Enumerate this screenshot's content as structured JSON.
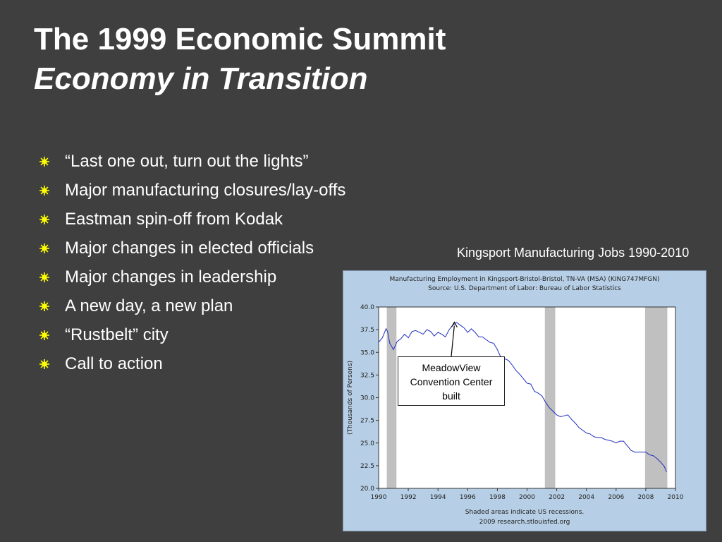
{
  "slide": {
    "title_line1": "The 1999 Economic Summit",
    "title_line2": "Economy in Transition",
    "bullets": [
      "“Last one out, turn out the lights”",
      "Major manufacturing closures/lay-offs",
      "Eastman spin-off from Kodak",
      "Major changes in elected officials",
      "Major changes in leadership",
      "A new day, a new plan",
      "“Rustbelt” city",
      "Call to action"
    ],
    "chart_caption": "Kingsport Manufacturing Jobs 1990-2010",
    "colors": {
      "background": "#3f3f3f",
      "bullet": "#ffff00",
      "chart_bg": "#b7cfe6",
      "plot_bg": "#ffffff",
      "line": "#1f2fbf",
      "recession": "#c0c0c0"
    }
  },
  "chart_data": {
    "type": "line",
    "title": "Manufacturing Employment in Kingsport-Bristol-Bristol, TN-VA (MSA) (KING747MFGN)",
    "subtitle": "Source: U.S. Department of Labor: Bureau of Labor Statistics",
    "ylabel": "(Thousands of Persons)",
    "xlabel": "",
    "xlim": [
      1990,
      2010
    ],
    "ylim": [
      20.0,
      40.0
    ],
    "x_ticks": [
      "1990",
      "1992",
      "1994",
      "1996",
      "1998",
      "2000",
      "2002",
      "2004",
      "2006",
      "2008",
      "2010"
    ],
    "y_ticks": [
      "20.0",
      "22.5",
      "25.0",
      "27.5",
      "30.0",
      "32.5",
      "35.0",
      "37.5",
      "40.0"
    ],
    "grid": false,
    "recessions": [
      [
        1990.55,
        1991.2
      ],
      [
        2001.2,
        2001.9
      ],
      [
        2007.95,
        2009.45
      ]
    ],
    "annotation": [
      "MeadowView",
      "Convention Center",
      "built"
    ],
    "annotation_x": 1995.1,
    "annotation_y": 38.4,
    "footer1": "Shaded areas indicate US recessions.",
    "footer2": "2009 research.stlouisfed.org",
    "series": [
      {
        "x": [
          1990.0,
          1990.25,
          1990.5,
          1990.6,
          1990.75,
          1991.0,
          1991.25,
          1991.5,
          1991.75,
          1992.0,
          1992.25,
          1992.5,
          1992.75,
          1993.0,
          1993.25,
          1993.5,
          1993.75,
          1994.0,
          1994.25,
          1994.5,
          1994.75,
          1995.0,
          1995.25,
          1995.5,
          1995.75,
          1996.0,
          1996.25,
          1996.5,
          1996.75,
          1997.0,
          1997.25,
          1997.5,
          1997.75,
          1998.0,
          1998.25,
          1998.5,
          1998.75,
          1999.0,
          1999.25,
          1999.5,
          1999.75,
          2000.0,
          2000.25,
          2000.5,
          2000.75,
          2001.0,
          2001.25,
          2001.5,
          2001.75,
          2002.0,
          2002.25,
          2002.5,
          2002.75,
          2003.0,
          2003.25,
          2003.5,
          2003.75,
          2004.0,
          2004.25,
          2004.5,
          2004.75,
          2005.0,
          2005.25,
          2005.5,
          2005.75,
          2006.0,
          2006.25,
          2006.5,
          2006.75,
          2007.0,
          2007.25,
          2007.5,
          2007.75,
          2008.0,
          2008.25,
          2008.5,
          2008.75,
          2009.0,
          2009.25,
          2009.4
        ],
        "values": [
          36.1,
          36.6,
          37.6,
          37.3,
          36.0,
          35.3,
          36.2,
          36.5,
          37.0,
          36.6,
          37.3,
          37.4,
          37.2,
          37.0,
          37.5,
          37.3,
          36.8,
          37.2,
          37.0,
          36.7,
          37.5,
          38.0,
          38.3,
          38.0,
          37.7,
          37.2,
          37.6,
          37.2,
          36.7,
          36.7,
          36.4,
          36.1,
          36.0,
          35.3,
          34.4,
          34.3,
          34.1,
          33.6,
          33.0,
          32.6,
          32.1,
          31.6,
          31.5,
          30.7,
          30.5,
          30.2,
          29.5,
          28.9,
          28.5,
          28.1,
          27.9,
          28.0,
          28.1,
          27.6,
          27.2,
          26.7,
          26.4,
          26.1,
          26.0,
          25.7,
          25.6,
          25.6,
          25.4,
          25.3,
          25.2,
          25.0,
          25.2,
          25.2,
          24.7,
          24.2,
          24.0,
          24.0,
          24.0,
          24.0,
          23.7,
          23.6,
          23.3,
          22.9,
          22.4,
          21.8
        ]
      }
    ]
  }
}
